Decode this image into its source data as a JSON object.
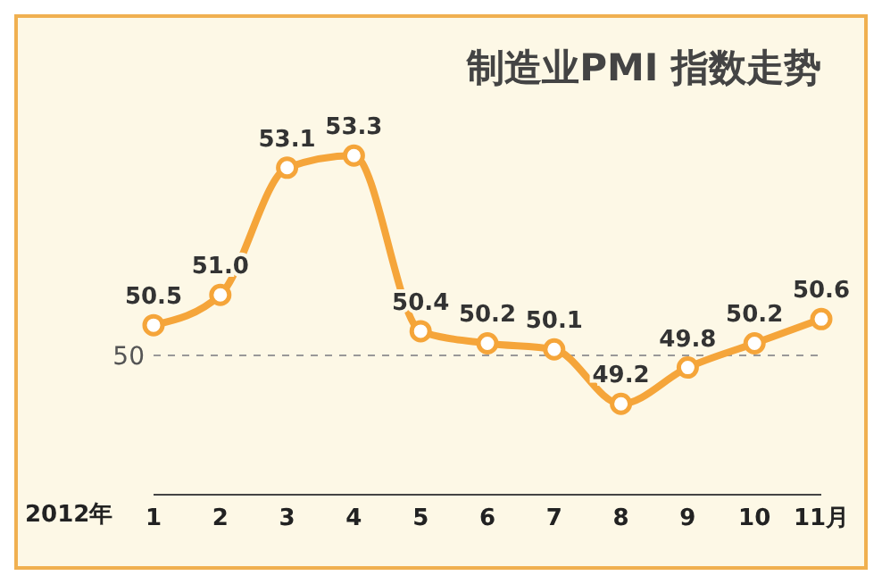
{
  "chart_data": {
    "type": "line",
    "title": "制造业PMI 指数走势",
    "xlabel": "2012年",
    "categories": [
      "1",
      "2",
      "3",
      "4",
      "5",
      "6",
      "7",
      "8",
      "9",
      "10",
      "11月"
    ],
    "series": [
      {
        "color": "#f5a53a",
        "values": [
          50.5,
          51.0,
          53.1,
          53.3,
          50.4,
          50.2,
          50.1,
          49.2,
          49.8,
          50.2,
          50.6
        ],
        "value_labels": [
          "50.5",
          "51.0",
          "53.1",
          "53.3",
          "50.4",
          "50.2",
          "50.1",
          "49.2",
          "49.8",
          "50.2",
          "50.6"
        ]
      }
    ],
    "ref_lines": [
      {
        "axis": "y",
        "value": 50,
        "label": "50",
        "color": "#999999",
        "line_style": "dashed"
      }
    ],
    "marker": "circle"
  }
}
